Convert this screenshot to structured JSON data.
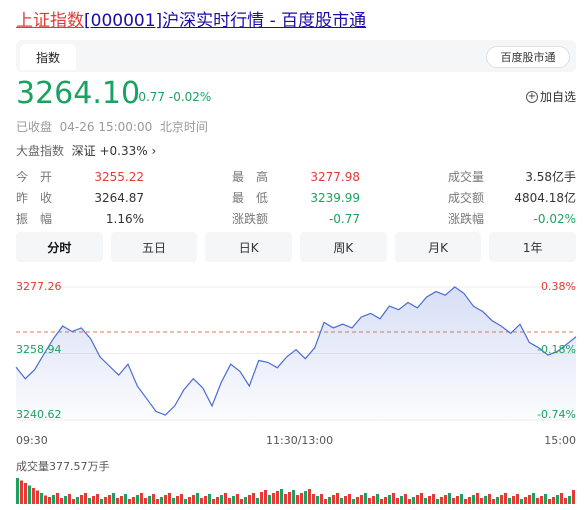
{
  "title": {
    "part1": "上证指数",
    "part2": "[000001]沪深实时行情 - 百度股市通"
  },
  "header": {
    "tab_label": "指数",
    "brand_button": "百度股市通"
  },
  "quote": {
    "price": "3264.10",
    "change": "-0.77 -0.02%",
    "add_watch": "加自选"
  },
  "status": {
    "text": "已收盘  04-26 15:00:00  北京时间"
  },
  "market": {
    "label": "大盘指数",
    "value": "深证 +0.33%",
    "chevron": "›"
  },
  "stats": {
    "col1": [
      {
        "label": "今　开",
        "value": "3255.22"
      },
      {
        "label": "昨　收",
        "value": "3264.87"
      },
      {
        "label": "振　幅",
        "value": "1.16%"
      }
    ],
    "col2": [
      {
        "label": "最　高",
        "value": "3277.98"
      },
      {
        "label": "最　低",
        "value": "3239.99"
      },
      {
        "label": "涨跌额",
        "value": "-0.77"
      }
    ],
    "col3": [
      {
        "label": "成交量",
        "value": "3.58亿手"
      },
      {
        "label": "成交额",
        "value": "4804.18亿"
      },
      {
        "label": "涨跌幅",
        "value": "-0.02%"
      }
    ]
  },
  "periods": [
    "分时",
    "五日",
    "日K",
    "周K",
    "月K",
    "1年"
  ],
  "chart_data": {
    "type": "line",
    "y_labels_left": [
      "3277.26",
      "3258.94",
      "3240.62"
    ],
    "y_labels_right": [
      "0.38%",
      "-0.18%",
      "-0.74%"
    ],
    "x_labels": [
      "09:30",
      "11:30/13:00",
      "15:00"
    ],
    "prev_close": 3264.87,
    "ylim": [
      3240.62,
      3277.26
    ],
    "x": [
      0,
      4,
      8,
      12,
      16,
      20,
      24,
      28,
      32,
      36,
      40,
      44,
      48,
      52,
      56,
      60,
      64,
      68,
      72,
      76,
      80,
      84,
      88,
      92,
      96,
      100,
      104,
      108,
      112,
      116,
      120,
      124,
      128,
      132,
      136,
      140,
      144,
      148,
      152,
      156,
      160,
      164,
      168,
      172,
      176,
      180,
      184,
      188,
      192,
      196,
      200,
      204,
      208,
      212,
      216,
      220,
      224,
      228,
      232,
      236,
      240
    ],
    "values": [
      3255.2,
      3252.0,
      3254.5,
      3258.8,
      3263.0,
      3266.5,
      3265.0,
      3266.0,
      3263.0,
      3258.0,
      3255.5,
      3253.0,
      3256.0,
      3250.0,
      3246.5,
      3243.0,
      3242.0,
      3244.5,
      3249.0,
      3252.0,
      3249.5,
      3244.5,
      3251.0,
      3256.0,
      3254.0,
      3250.0,
      3257.0,
      3256.5,
      3255.0,
      3258.0,
      3260.0,
      3257.5,
      3260.5,
      3267.5,
      3266.0,
      3267.0,
      3266.0,
      3269.0,
      3270.0,
      3268.5,
      3272.0,
      3271.0,
      3273.0,
      3271.5,
      3274.5,
      3276.0,
      3275.0,
      3277.3,
      3275.5,
      3272.0,
      3270.5,
      3268.0,
      3266.5,
      3264.5,
      3267.0,
      3262.0,
      3260.5,
      3258.5,
      3259.5,
      3261.5,
      3263.5
    ],
    "volume_label": "成交量377.57万手"
  },
  "colors": {
    "up": "#e53935",
    "down": "#1aa260",
    "line": "#4a6cd4",
    "title_link": "#1a0dab"
  }
}
